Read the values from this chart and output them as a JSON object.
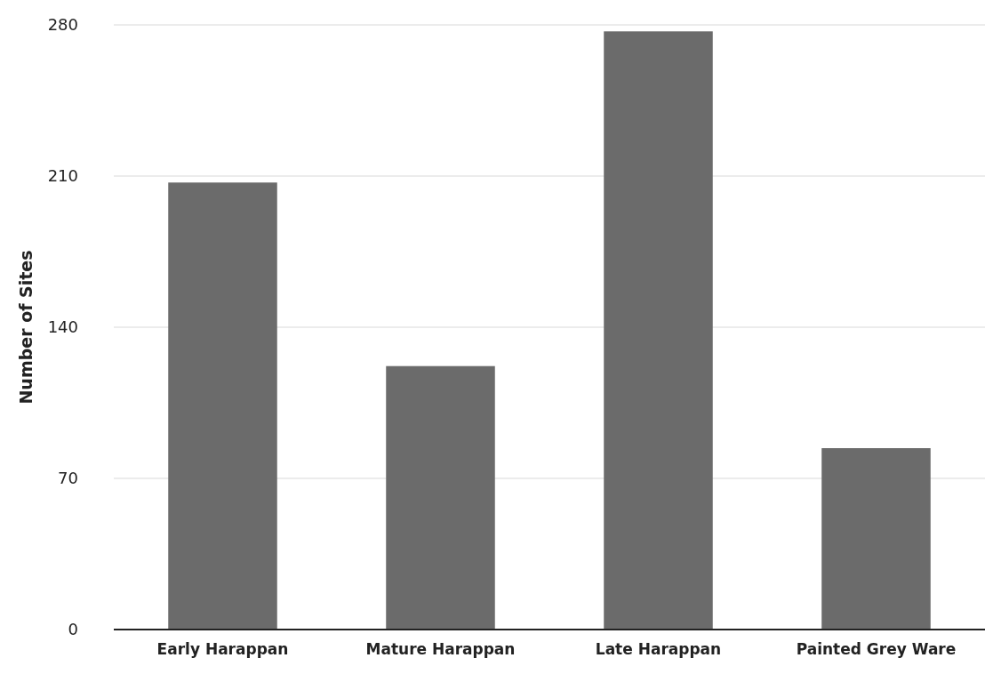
{
  "chart_data": {
    "type": "bar",
    "ylabel": "Number of Sites",
    "categories": [
      "Early Harappan",
      "Mature Harappan",
      "Late Harappan",
      "Painted Grey Ware"
    ],
    "values": [
      207,
      122,
      277,
      84
    ],
    "color": "#6b6b6b",
    "ylim": [
      0,
      280
    ],
    "yticks": [
      0,
      70,
      140,
      210,
      280
    ],
    "grid": "y"
  }
}
